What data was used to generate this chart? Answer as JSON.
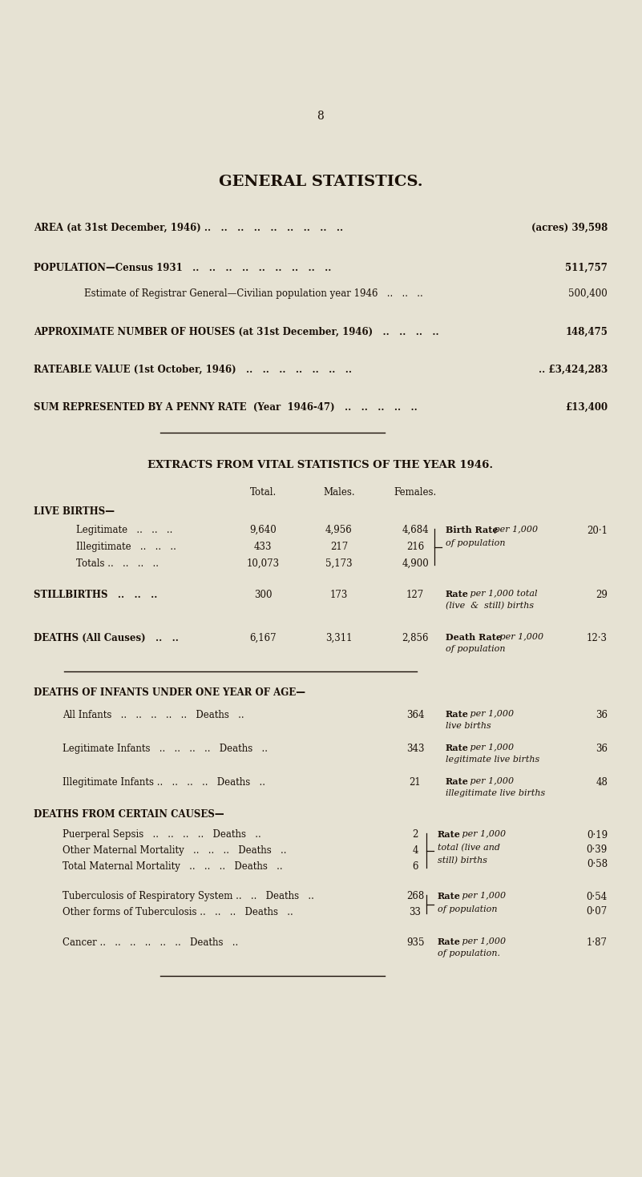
{
  "bg_color": "#e6e2d3",
  "text_color": "#1a1008",
  "page_number": "8",
  "title": "GENERAL STATISTICS.",
  "section2_title": "EXTRACTS FROM VITAL STATISTICS OF THE YEAR 1946."
}
